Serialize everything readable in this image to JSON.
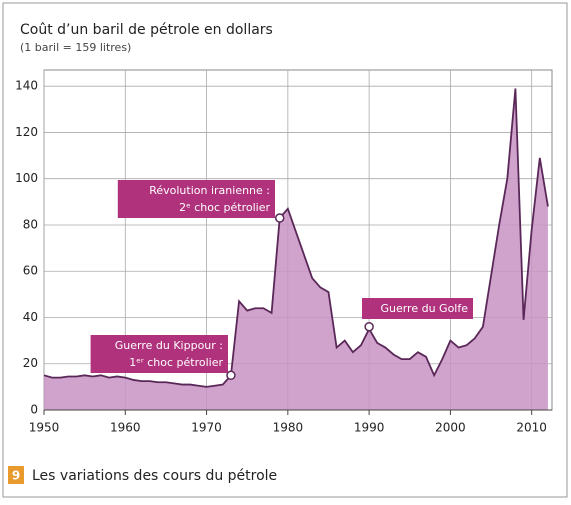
{
  "chart_data": {
    "type": "area",
    "title": "Coût d’un baril de pétrole en dollars",
    "subtitle": "(1 baril = 159 litres)",
    "caption_number": "9",
    "caption": "Les variations des cours du pétrole",
    "x": [
      1950,
      1951,
      1952,
      1953,
      1954,
      1955,
      1956,
      1957,
      1958,
      1959,
      1960,
      1961,
      1962,
      1963,
      1964,
      1965,
      1966,
      1967,
      1968,
      1969,
      1970,
      1971,
      1972,
      1973,
      1974,
      1975,
      1976,
      1977,
      1978,
      1979,
      1980,
      1981,
      1982,
      1983,
      1984,
      1985,
      1986,
      1987,
      1988,
      1989,
      1990,
      1991,
      1992,
      1993,
      1994,
      1995,
      1996,
      1997,
      1998,
      1999,
      2000,
      2001,
      2002,
      2003,
      2004,
      2005,
      2006,
      2007,
      2008,
      2009,
      2010,
      2011,
      2012
    ],
    "values": [
      15,
      14,
      14,
      14.5,
      14.5,
      15,
      14.5,
      15,
      14,
      14.5,
      14,
      13,
      12.5,
      12.5,
      12,
      12,
      11.5,
      11,
      11,
      10.5,
      10,
      10.5,
      11,
      15,
      47,
      43,
      44,
      44,
      42,
      83,
      87,
      77,
      67,
      57,
      53,
      51,
      27,
      30,
      25,
      28,
      35,
      29,
      27,
      24,
      22,
      22,
      25,
      23,
      15,
      22,
      30,
      27,
      28,
      31,
      36,
      58,
      80,
      100,
      139,
      39,
      78,
      109,
      88
    ],
    "color": "#c793c3",
    "line_color": "#5a2858",
    "xlim": [
      1950,
      2012.5
    ],
    "ylim": [
      0,
      147
    ],
    "xticks": [
      1950,
      1960,
      1970,
      1980,
      1990,
      2000,
      2010
    ],
    "yticks": [
      0,
      20,
      40,
      60,
      80,
      100,
      120,
      140
    ],
    "grid": true,
    "annotations": [
      {
        "lines": [
          "Guerre du Kippour :",
          "1ᵉʳ choc pétrolier"
        ],
        "x": 1973,
        "y": 15
      },
      {
        "lines": [
          "Révolution iranienne :",
          "2ᵉ choc pétrolier"
        ],
        "x": 1979,
        "y": 83
      },
      {
        "lines": [
          "Guerre du Golfe"
        ],
        "x": 1990,
        "y": 36
      }
    ]
  }
}
